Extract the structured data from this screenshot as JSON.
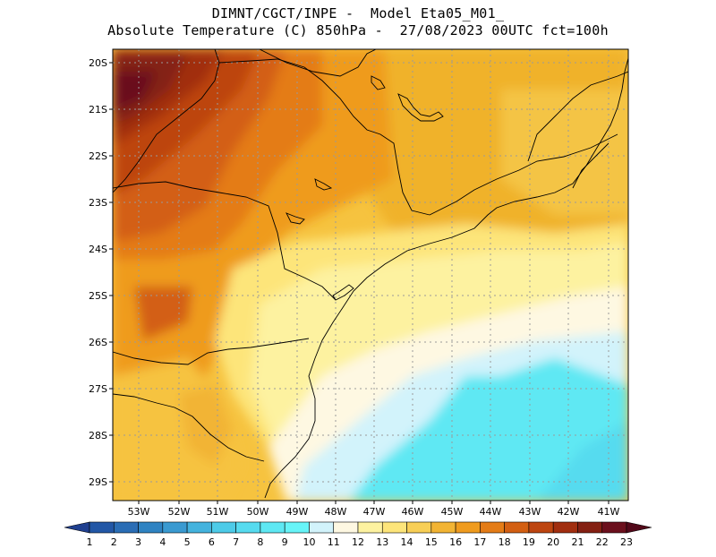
{
  "header": {
    "line1": "DIMNT/CGCT/INPE -  Model Eta05_M01_",
    "line2": "Absolute Temperature (C) 850hPa -  27/08/2023 00UTC fct=100h"
  },
  "map": {
    "lat_labels": [
      "20S",
      "21S",
      "22S",
      "23S",
      "24S",
      "25S",
      "26S",
      "27S",
      "28S",
      "29S"
    ],
    "lon_labels": [
      "53W",
      "52W",
      "51W",
      "50W",
      "49W",
      "48W",
      "47W",
      "46W",
      "45W",
      "44W",
      "43W",
      "42W",
      "41W"
    ],
    "grid": "dotted"
  },
  "colorbar": {
    "labels": [
      "1",
      "2",
      "3",
      "4",
      "5",
      "6",
      "7",
      "8",
      "9",
      "10",
      "11",
      "12",
      "13",
      "14",
      "15",
      "16",
      "17",
      "18",
      "19",
      "20",
      "21",
      "22",
      "23"
    ],
    "colors": [
      "#1f3f8f",
      "#2257a6",
      "#2a6db5",
      "#2f83c2",
      "#3a9ad1",
      "#44b3de",
      "#4dcbe8",
      "#56dbef",
      "#5ee8f3",
      "#67f4f8",
      "#d2f3fb",
      "#fef8e2",
      "#fdf2a0",
      "#fde57a",
      "#f8cf56",
      "#f2b434",
      "#ef9b1e",
      "#e47c17",
      "#d35f12",
      "#bd4510",
      "#a12e0f",
      "#842012",
      "#6b0f1c",
      "#520819"
    ]
  }
}
